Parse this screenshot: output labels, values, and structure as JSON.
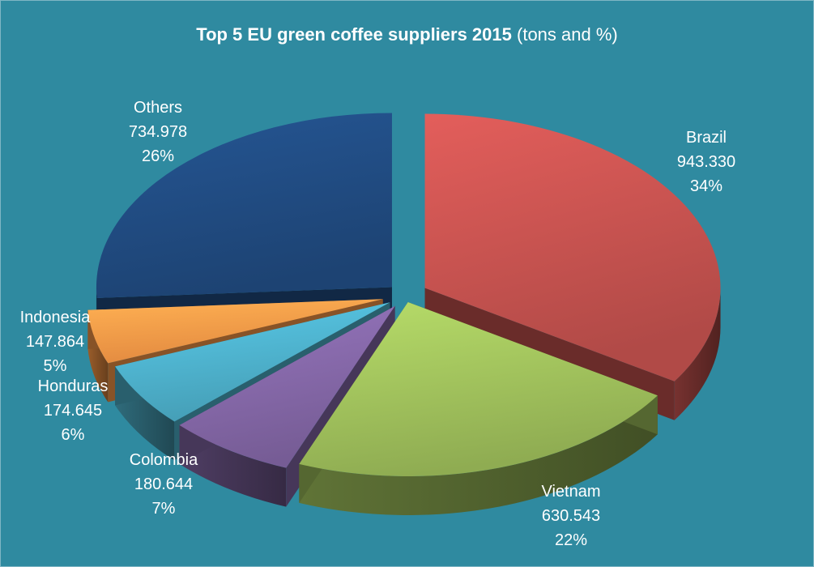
{
  "chart_data": {
    "type": "pie",
    "title": "Top 5 EU green coffee suppliers 2015",
    "subtitle": "(tons and %)",
    "slices": [
      {
        "name": "Brazil",
        "value": "943.330",
        "percent": "34%",
        "pct": 34,
        "color": "#c0504d"
      },
      {
        "name": "Vietnam",
        "value": "630.543",
        "percent": "22%",
        "pct": 22,
        "color": "#9bbb59"
      },
      {
        "name": "Colombia",
        "value": "180.644",
        "percent": "7%",
        "pct": 7,
        "color": "#8064a2"
      },
      {
        "name": "Honduras",
        "value": "174.645",
        "percent": "6%",
        "pct": 6,
        "color": "#4bacc6"
      },
      {
        "name": "Indonesia",
        "value": "147.864",
        "percent": "5%",
        "pct": 5,
        "color": "#f79646"
      },
      {
        "name": "Others",
        "value": "734.978",
        "percent": "26%",
        "pct": 26,
        "color": "#1f497d"
      }
    ]
  }
}
